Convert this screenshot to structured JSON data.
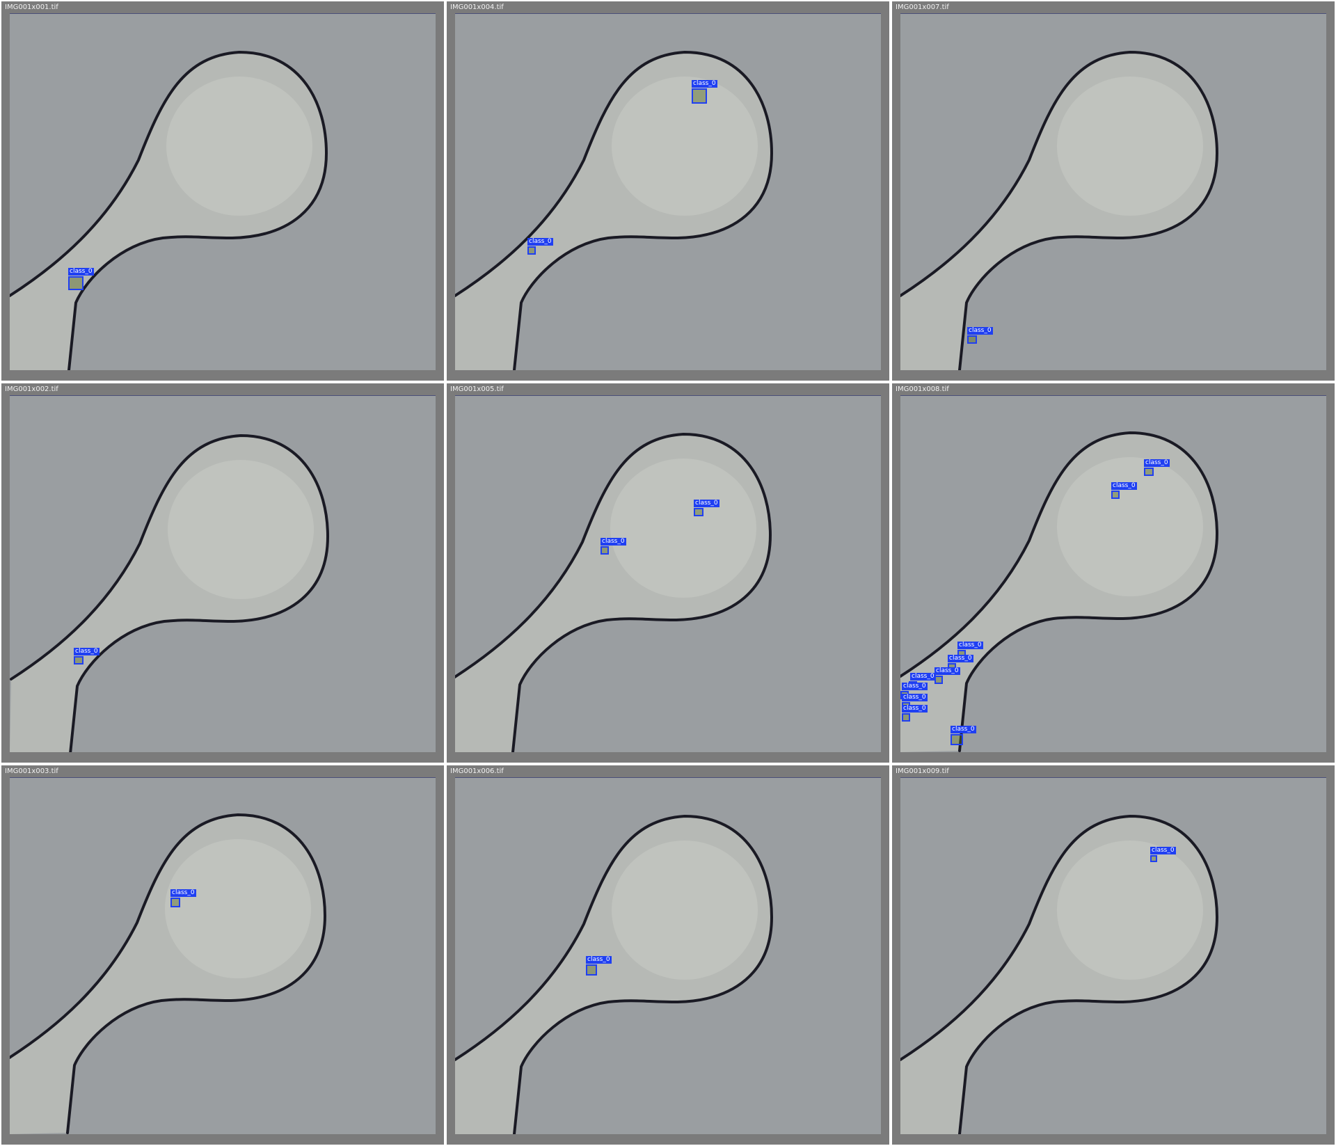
{
  "colors": {
    "background": "#9a9ea1",
    "channel": "#b6b9b5",
    "wall": "#1a1a24",
    "detection": "#1f3ff2"
  },
  "panels": [
    {
      "title": "IMG001x001.tif",
      "detections": [
        {
          "label": "class_0"
        }
      ]
    },
    {
      "title": "IMG001x004.tif",
      "detections": [
        {
          "label": "class_0"
        },
        {
          "label": "class_0"
        }
      ]
    },
    {
      "title": "IMG001x007.tif",
      "detections": [
        {
          "label": "class_0"
        }
      ]
    },
    {
      "title": "IMG001x002.tif",
      "detections": [
        {
          "label": "class_0"
        }
      ]
    },
    {
      "title": "IMG001x005.tif",
      "detections": [
        {
          "label": "class_0"
        },
        {
          "label": "class_0"
        }
      ]
    },
    {
      "title": "IMG001x008.tif",
      "detections": [
        {
          "label": "class_0"
        },
        {
          "label": "class_0"
        },
        {
          "label": "class_0"
        },
        {
          "label": "class_0"
        },
        {
          "label": "class_0"
        },
        {
          "label": "class_0"
        },
        {
          "label": "class_0"
        },
        {
          "label": "class_0"
        },
        {
          "label": "class_0"
        },
        {
          "label": "class_0"
        }
      ]
    },
    {
      "title": "IMG001x003.tif",
      "detections": [
        {
          "label": "class_0"
        }
      ]
    },
    {
      "title": "IMG001x006.tif",
      "detections": [
        {
          "label": "class_0"
        }
      ]
    },
    {
      "title": "IMG001x009.tif",
      "detections": [
        {
          "label": "class_0"
        }
      ]
    }
  ]
}
